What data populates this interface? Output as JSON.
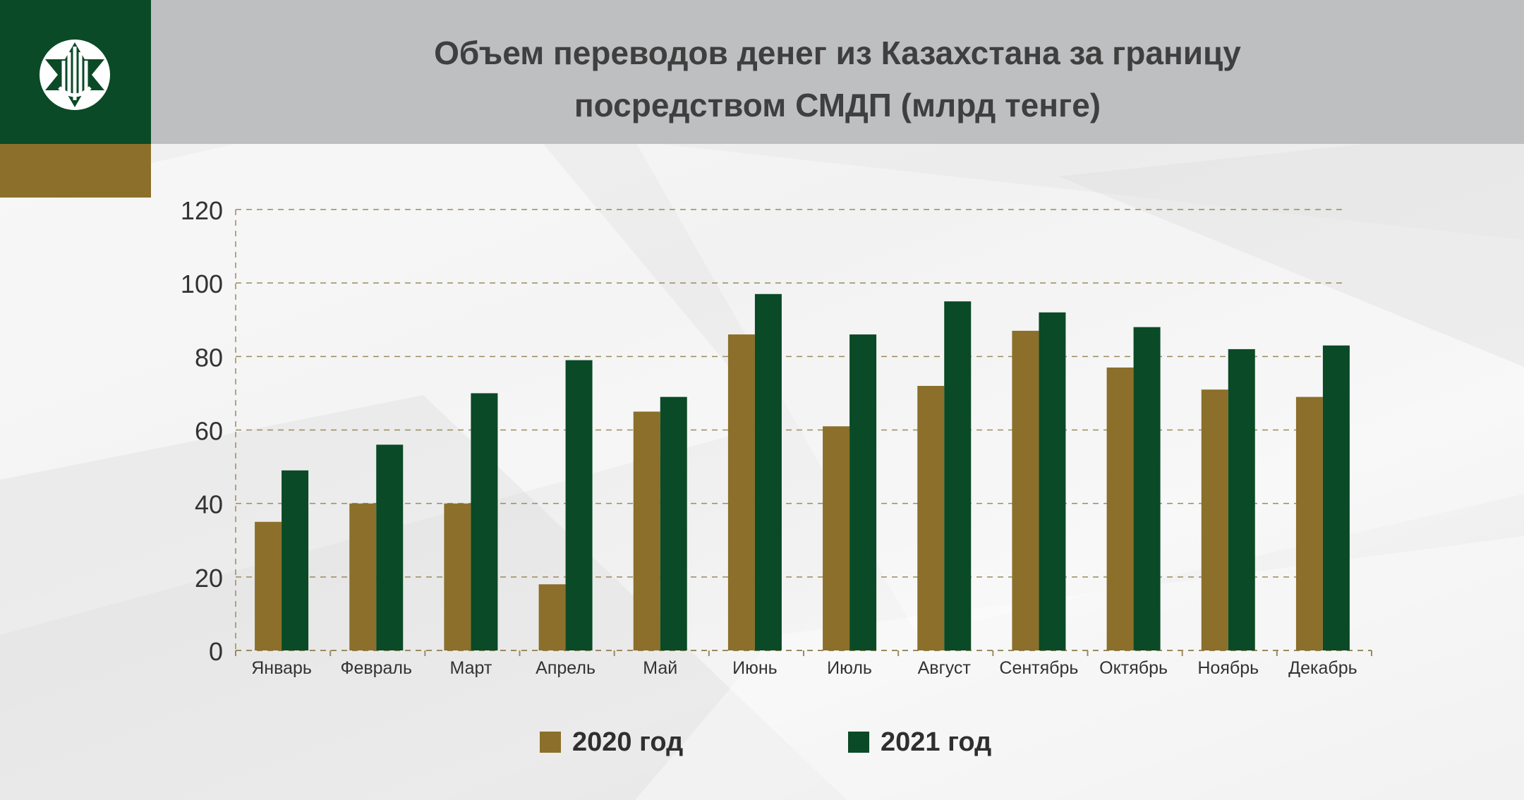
{
  "header": {
    "title_line1": "Объем переводов денег из Казахстана за границу",
    "title_line2": "посредством СМДП (млрд тенге)"
  },
  "logo": {
    "icon": "national-bank-emblem-icon"
  },
  "colors": {
    "series_2020": "#8b6f2a",
    "series_2021": "#0a4a26",
    "brand_green": "#0a4a26",
    "brand_gold": "#8b6f2a",
    "header_gray": "#bebfc1"
  },
  "chart_data": {
    "type": "bar",
    "title": "Объем переводов денег из Казахстана за границу посредством СМДП (млрд тенге)",
    "categories": [
      "Январь",
      "Февраль",
      "Март",
      "Апрель",
      "Май",
      "Июнь",
      "Июль",
      "Август",
      "Сентябрь",
      "Октябрь",
      "Ноябрь",
      "Декабрь"
    ],
    "series": [
      {
        "name": "2020 год",
        "values": [
          35,
          40,
          40,
          18,
          65,
          86,
          61,
          72,
          87,
          77,
          71,
          69
        ]
      },
      {
        "name": "2021 год",
        "values": [
          49,
          56,
          70,
          79,
          69,
          97,
          86,
          95,
          92,
          88,
          82,
          83
        ]
      }
    ],
    "yticks": [
      "0",
      "20",
      "40",
      "60",
      "80",
      "100",
      "120"
    ],
    "ylim": [
      0,
      120
    ],
    "xlabel": "",
    "ylabel": "",
    "grid": true,
    "legend": "bottom"
  }
}
